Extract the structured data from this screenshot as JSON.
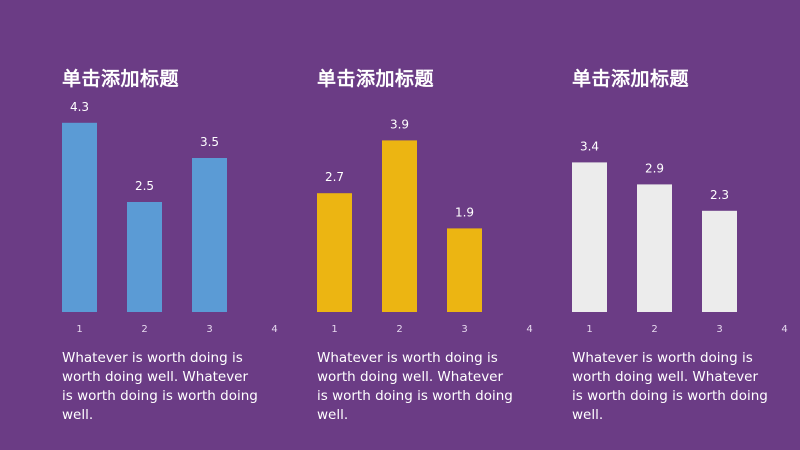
{
  "colors": {
    "background": "#6b3c85",
    "blue": "#5b9bd5",
    "gold": "#ecb512",
    "white": "#ececec"
  },
  "panels": [
    {
      "title": "单击添加标题",
      "description": "Whatever is worth doing is worth doing well. Whatever is worth doing is worth doing well."
    },
    {
      "title": "单击添加标题",
      "description": "Whatever is worth doing is worth doing well. Whatever is worth doing is worth doing well."
    },
    {
      "title": "单击添加标题",
      "description": "Whatever is worth doing is worth doing well. Whatever is worth doing is worth doing well."
    }
  ],
  "chart_data": [
    {
      "type": "bar",
      "title": "单击添加标题",
      "categories": [
        "1",
        "2",
        "3",
        "4"
      ],
      "values": [
        4.3,
        2.5,
        3.5,
        null
      ],
      "color": "#5b9bd5",
      "ylim": [
        0,
        4.5
      ],
      "grid": false,
      "legend": "none"
    },
    {
      "type": "bar",
      "title": "单击添加标题",
      "categories": [
        "1",
        "2",
        "3",
        "4"
      ],
      "values": [
        2.7,
        3.9,
        1.9,
        null
      ],
      "color": "#ecb512",
      "ylim": [
        0,
        4.5
      ],
      "grid": false,
      "legend": "none"
    },
    {
      "type": "bar",
      "title": "单击添加标题",
      "categories": [
        "1",
        "2",
        "3",
        "4"
      ],
      "values": [
        3.4,
        2.9,
        2.3,
        null
      ],
      "color": "#ececec",
      "ylim": [
        0,
        4.5
      ],
      "grid": false,
      "legend": "none"
    }
  ]
}
